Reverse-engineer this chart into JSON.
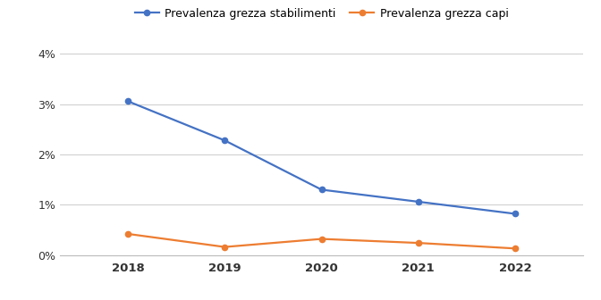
{
  "years": [
    2018,
    2019,
    2020,
    2021,
    2022
  ],
  "stabilimenti": [
    0.0306,
    0.0228,
    0.013,
    0.0106,
    0.0082
  ],
  "capi": [
    0.0042,
    0.0016,
    0.0032,
    0.0024,
    0.0013
  ],
  "line1_color": "#4472C4",
  "line2_color": "#ED7D31",
  "legend1": "Prevalenza grezza stabilimenti",
  "legend2": "Prevalenza grezza capi",
  "ylim": [
    0,
    0.04
  ],
  "yticks": [
    0,
    0.01,
    0.02,
    0.03,
    0.04
  ],
  "ytick_labels": [
    "0%",
    "1%",
    "2%",
    "3%",
    "4%"
  ],
  "bg_color": "#FFFFFF",
  "grid_color": "#CCCCCC"
}
